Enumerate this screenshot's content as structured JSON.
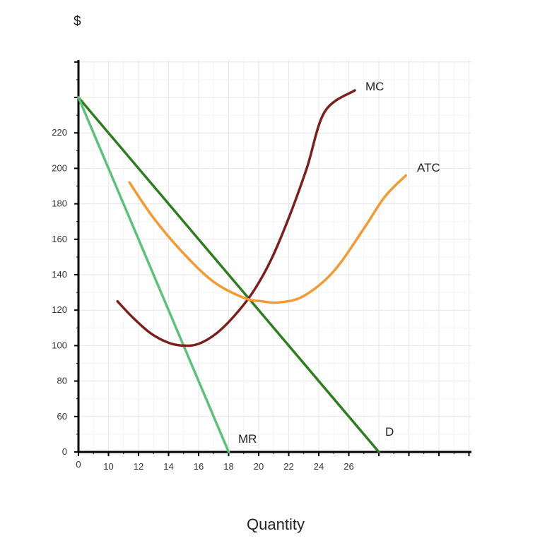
{
  "chart_data": {
    "type": "line",
    "title": "",
    "xlabel": "Quantity",
    "ylabel": "$",
    "x_ticks": [
      {
        "pos": 0,
        "label": "0"
      },
      {
        "pos": 1,
        "label": "10"
      },
      {
        "pos": 2,
        "label": "12"
      },
      {
        "pos": 3,
        "label": "14"
      },
      {
        "pos": 4,
        "label": "16"
      },
      {
        "pos": 5,
        "label": "18"
      },
      {
        "pos": 6,
        "label": "20"
      },
      {
        "pos": 7,
        "label": "22"
      },
      {
        "pos": 8,
        "label": "24"
      },
      {
        "pos": 9,
        "label": "26"
      }
    ],
    "y_ticks": [
      {
        "pos": 0,
        "label": "0"
      },
      {
        "pos": 1,
        "label": "60"
      },
      {
        "pos": 2,
        "label": "80"
      },
      {
        "pos": 3,
        "label": "100"
      },
      {
        "pos": 4,
        "label": "120"
      },
      {
        "pos": 5,
        "label": "140"
      },
      {
        "pos": 6,
        "label": "160"
      },
      {
        "pos": 7,
        "label": "180"
      },
      {
        "pos": 8,
        "label": "200"
      },
      {
        "pos": 9,
        "label": "220"
      }
    ],
    "xlim": [
      0,
      13
    ],
    "ylim": [
      0,
      11
    ],
    "grid": true,
    "series": [
      {
        "name": "D",
        "color": "#2e7d1f",
        "points": [
          [
            0,
            10
          ],
          [
            10,
            0
          ]
        ]
      },
      {
        "name": "MR",
        "color": "#5cc27a",
        "points": [
          [
            0,
            10
          ],
          [
            5,
            0
          ]
        ]
      },
      {
        "name": "MC",
        "color": "#7b1f1f",
        "points": [
          [
            1.3,
            4.25
          ],
          [
            1.8,
            3.8
          ],
          [
            2.4,
            3.35
          ],
          [
            3.0,
            3.08
          ],
          [
            3.5,
            3.0
          ],
          [
            4.0,
            3.05
          ],
          [
            4.6,
            3.35
          ],
          [
            5.2,
            3.85
          ],
          [
            5.8,
            4.5
          ],
          [
            6.4,
            5.4
          ],
          [
            7.0,
            6.6
          ],
          [
            7.6,
            8.0
          ],
          [
            8.2,
            9.6
          ],
          [
            9.2,
            10.2
          ]
        ]
      },
      {
        "name": "ATC",
        "color": "#f39a33",
        "points": [
          [
            1.7,
            7.6
          ],
          [
            2.5,
            6.6
          ],
          [
            3.5,
            5.6
          ],
          [
            4.5,
            4.8
          ],
          [
            5.5,
            4.35
          ],
          [
            6.1,
            4.25
          ],
          [
            6.7,
            4.22
          ],
          [
            7.5,
            4.4
          ],
          [
            8.5,
            5.1
          ],
          [
            9.5,
            6.3
          ],
          [
            10.2,
            7.2
          ],
          [
            10.9,
            7.8
          ]
        ]
      }
    ],
    "labels": {
      "mc": "MC",
      "atc": "ATC",
      "mr": "MR",
      "d": "D"
    }
  }
}
